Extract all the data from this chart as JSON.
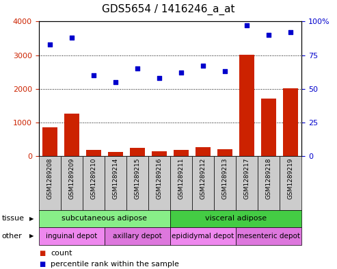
{
  "title": "GDS5654 / 1416246_a_at",
  "samples": [
    "GSM1289208",
    "GSM1289209",
    "GSM1289210",
    "GSM1289214",
    "GSM1289215",
    "GSM1289216",
    "GSM1289211",
    "GSM1289212",
    "GSM1289213",
    "GSM1289217",
    "GSM1289218",
    "GSM1289219"
  ],
  "counts": [
    850,
    1270,
    175,
    120,
    240,
    150,
    185,
    270,
    205,
    3020,
    1700,
    2020
  ],
  "percentile": [
    83,
    88,
    60,
    55,
    65,
    58,
    62,
    67,
    63,
    97,
    90,
    92
  ],
  "ylim_left": [
    0,
    4000
  ],
  "ylim_right": [
    0,
    100
  ],
  "yticks_left": [
    0,
    1000,
    2000,
    3000,
    4000
  ],
  "yticks_right": [
    0,
    25,
    50,
    75,
    100
  ],
  "bar_color": "#cc2200",
  "dot_color": "#0000cc",
  "grid_color": "#000000",
  "bg_color": "#ffffff",
  "xticklabel_bg": "#cccccc",
  "tissue_labels": [
    {
      "text": "subcutaneous adipose",
      "start": 0,
      "end": 6,
      "color": "#88ee88"
    },
    {
      "text": "visceral adipose",
      "start": 6,
      "end": 12,
      "color": "#44cc44"
    }
  ],
  "other_labels": [
    {
      "text": "inguinal depot",
      "start": 0,
      "end": 3,
      "color": "#ee88ee"
    },
    {
      "text": "axillary depot",
      "start": 3,
      "end": 6,
      "color": "#dd77dd"
    },
    {
      "text": "epididymal depot",
      "start": 6,
      "end": 9,
      "color": "#ee88ee"
    },
    {
      "text": "mesenteric depot",
      "start": 9,
      "end": 12,
      "color": "#dd77dd"
    }
  ],
  "left_tick_color": "#cc2200",
  "right_tick_color": "#0000cc",
  "title_fontsize": 11,
  "tick_fontsize": 8,
  "xtick_fontsize": 6.5,
  "legend_fontsize": 8,
  "tissue_fontsize": 8,
  "other_fontsize": 7.5,
  "row_label_fontsize": 8
}
